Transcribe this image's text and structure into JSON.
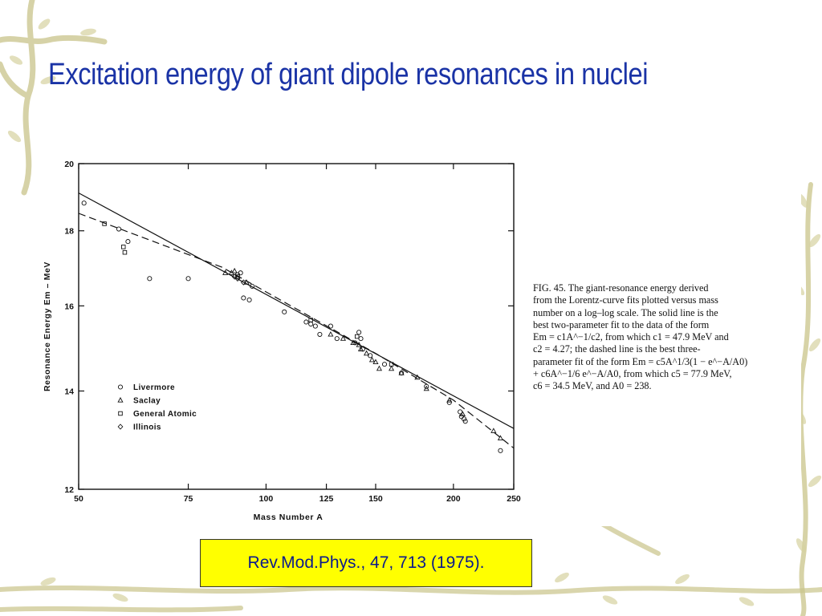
{
  "slide": {
    "title": "Excitation energy of giant dipole resonances in nuclei",
    "reference": "Rev.Mod.Phys., 47, 713 (1975)."
  },
  "caption": {
    "lines": [
      "FIG. 45. The giant-resonance energy derived",
      "from the Lorentz-curve fits plotted versus mass",
      "number on a log–log scale. The solid line is the",
      "best two-parameter fit to the data of the form",
      "Em = c1A^−1/c2, from which c1 = 47.9 MeV and",
      "c2 = 4.27; the dashed line is the best three-",
      "parameter fit of the form Em = c5A^1/3(1 − e^−A/A0)",
      "+ c6A^−1/6 e^−A/A0, from which c5 = 77.9 MeV,",
      "c6 = 34.5 MeV, and A0 = 238."
    ]
  },
  "colors": {
    "title": "#1a33a6",
    "reference_text": "#0b1a8c",
    "reference_bg": "#ffff00",
    "decoration": "#c9c48a"
  },
  "chart_data": {
    "type": "scatter",
    "xlabel": "Mass Number A",
    "ylabel": "Resonance Energy Em – MeV",
    "xscale": "log",
    "yscale": "log",
    "xlim": [
      50,
      250
    ],
    "ylim": [
      12,
      20
    ],
    "x_ticks": [
      50,
      75,
      100,
      125,
      150,
      200,
      250
    ],
    "y_ticks": [
      12,
      14,
      16,
      18,
      20
    ],
    "legend_position": "lower-left",
    "lines": [
      {
        "style": "solid",
        "points": [
          [
            50,
            19.1
          ],
          [
            250,
            13.2
          ]
        ]
      },
      {
        "style": "dashed",
        "points": [
          [
            50,
            18.5
          ],
          [
            85,
            17.0
          ],
          [
            150,
            14.85
          ],
          [
            200,
            13.8
          ],
          [
            250,
            12.8
          ]
        ]
      }
    ],
    "series": [
      {
        "name": "Livermore",
        "marker": "circle",
        "points": [
          [
            51,
            18.8
          ],
          [
            58,
            18.05
          ],
          [
            60,
            17.7
          ],
          [
            65,
            16.7
          ],
          [
            75,
            16.7
          ],
          [
            90,
            16.8
          ],
          [
            91,
            16.85
          ],
          [
            92,
            16.2
          ],
          [
            94,
            16.15
          ],
          [
            95,
            16.5
          ],
          [
            107,
            15.85
          ],
          [
            116,
            15.6
          ],
          [
            118,
            15.55
          ],
          [
            120,
            15.5
          ],
          [
            122,
            15.3
          ],
          [
            127,
            15.5
          ],
          [
            130,
            15.2
          ],
          [
            139,
            15.1
          ],
          [
            141,
            15.35
          ],
          [
            142,
            15.2
          ],
          [
            143,
            14.95
          ],
          [
            147,
            14.8
          ],
          [
            155,
            14.6
          ],
          [
            165,
            14.4
          ],
          [
            181,
            14.1
          ],
          [
            197,
            13.75
          ],
          [
            205,
            13.55
          ],
          [
            206,
            13.45
          ],
          [
            208,
            13.4
          ],
          [
            209,
            13.35
          ],
          [
            238,
            12.75
          ]
        ]
      },
      {
        "name": "Saclay",
        "marker": "triangle",
        "points": [
          [
            86,
            16.85
          ],
          [
            88,
            16.85
          ],
          [
            89,
            16.9
          ],
          [
            93,
            16.6
          ],
          [
            127,
            15.3
          ],
          [
            133,
            15.2
          ],
          [
            138,
            15.1
          ],
          [
            141,
            15.05
          ],
          [
            142,
            14.95
          ],
          [
            145,
            14.85
          ],
          [
            148,
            14.7
          ],
          [
            150,
            14.65
          ],
          [
            152,
            14.5
          ],
          [
            159,
            14.5
          ],
          [
            165,
            14.4
          ],
          [
            175,
            14.3
          ],
          [
            181,
            14.05
          ],
          [
            197,
            13.8
          ],
          [
            207,
            13.5
          ],
          [
            232,
            13.15
          ],
          [
            238,
            13.0
          ]
        ]
      },
      {
        "name": "General Atomic",
        "marker": "square",
        "points": [
          [
            55,
            18.2
          ],
          [
            59,
            17.55
          ],
          [
            59.3,
            17.4
          ],
          [
            90,
            16.75
          ],
          [
            118,
            15.65
          ],
          [
            140,
            15.25
          ],
          [
            159,
            14.6
          ]
        ]
      },
      {
        "name": "Illinois",
        "marker": "diamond",
        "points": [
          [
            89,
            16.75
          ],
          [
            90,
            16.7
          ],
          [
            92,
            16.6
          ]
        ]
      }
    ]
  }
}
